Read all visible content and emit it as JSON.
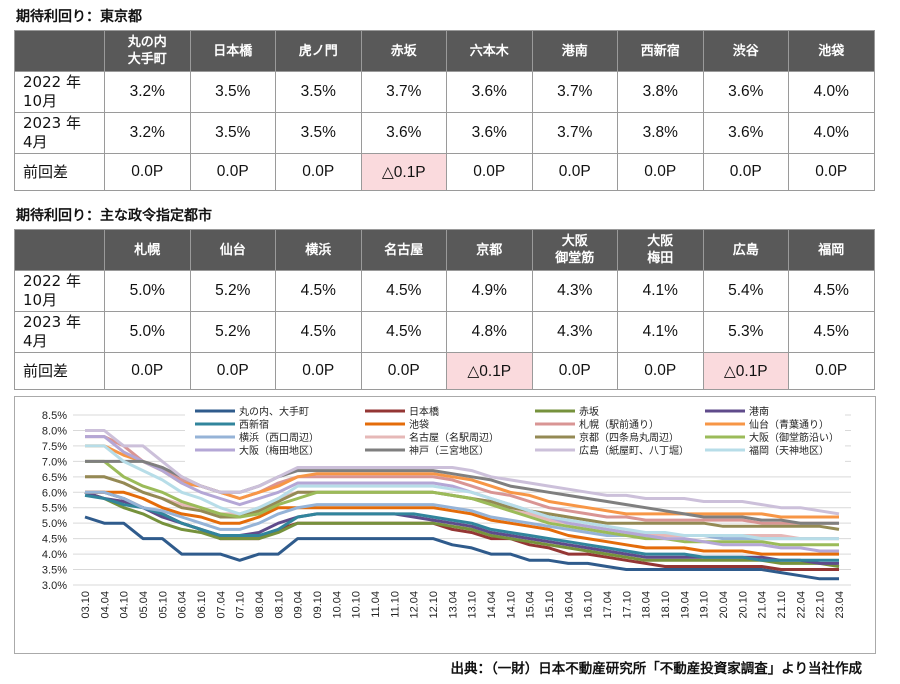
{
  "tokyo": {
    "title": "期待利回り：東京都",
    "columns": [
      "丸の内\n大手町",
      "日本橋",
      "虎ノ門",
      "赤坂",
      "六本木",
      "港南",
      "西新宿",
      "渋谷",
      "池袋"
    ],
    "rows": [
      {
        "label": "2022 年\n10月",
        "values": [
          "3.2%",
          "3.5%",
          "3.5%",
          "3.7%",
          "3.6%",
          "3.7%",
          "3.8%",
          "3.6%",
          "4.0%"
        ]
      },
      {
        "label": "2023 年\n4月",
        "values": [
          "3.2%",
          "3.5%",
          "3.5%",
          "3.6%",
          "3.6%",
          "3.7%",
          "3.8%",
          "3.6%",
          "4.0%"
        ]
      },
      {
        "label": "前回差",
        "values": [
          "0.0P",
          "0.0P",
          "0.0P",
          "△0.1P",
          "0.0P",
          "0.0P",
          "0.0P",
          "0.0P",
          "0.0P"
        ],
        "highlight": [
          false,
          false,
          false,
          true,
          false,
          false,
          false,
          false,
          false
        ]
      }
    ]
  },
  "cities": {
    "title": "期待利回り：主な政令指定都市",
    "columns": [
      "札幌",
      "仙台",
      "横浜",
      "名古屋",
      "京都",
      "大阪\n御堂筋",
      "大阪\n梅田",
      "広島",
      "福岡"
    ],
    "rows": [
      {
        "label": "2022 年\n10月",
        "values": [
          "5.0%",
          "5.2%",
          "4.5%",
          "4.5%",
          "4.9%",
          "4.3%",
          "4.1%",
          "5.4%",
          "4.5%"
        ]
      },
      {
        "label": "2023 年\n4月",
        "values": [
          "5.0%",
          "5.2%",
          "4.5%",
          "4.5%",
          "4.8%",
          "4.3%",
          "4.1%",
          "5.3%",
          "4.5%"
        ]
      },
      {
        "label": "前回差",
        "values": [
          "0.0P",
          "0.0P",
          "0.0P",
          "0.0P",
          "△0.1P",
          "0.0P",
          "0.0P",
          "△0.1P",
          "0.0P"
        ],
        "highlight": [
          false,
          false,
          false,
          false,
          true,
          false,
          false,
          true,
          false
        ]
      }
    ]
  },
  "chart_data": {
    "type": "line",
    "x": [
      "03.10",
      "04.04",
      "04.10",
      "05.04",
      "05.10",
      "06.04",
      "06.10",
      "07.04",
      "07.10",
      "08.04",
      "08.10",
      "09.04",
      "09.10",
      "10.04",
      "10.10",
      "11.04",
      "11.10",
      "12.04",
      "12.10",
      "13.04",
      "13.10",
      "14.04",
      "14.10",
      "15.04",
      "15.10",
      "16.04",
      "16.10",
      "17.04",
      "17.10",
      "18.04",
      "18.10",
      "19.04",
      "19.10",
      "20.04",
      "20.10",
      "21.04",
      "21.10",
      "22.04",
      "22.10",
      "23.04"
    ],
    "y_ticks": [
      "3.0%",
      "3.5%",
      "4.0%",
      "4.5%",
      "5.0%",
      "5.5%",
      "6.0%",
      "6.5%",
      "7.0%",
      "7.5%",
      "8.0%",
      "8.5%"
    ],
    "ylim": [
      3.0,
      8.5
    ],
    "grid": true,
    "legend_position": "top",
    "series": [
      {
        "name": "丸の内、大手町",
        "color": "#2f5b8c",
        "values": [
          5.2,
          5.0,
          5.0,
          4.5,
          4.5,
          4.0,
          4.0,
          4.0,
          3.8,
          4.0,
          4.0,
          4.5,
          4.5,
          4.5,
          4.5,
          4.5,
          4.5,
          4.5,
          4.5,
          4.3,
          4.2,
          4.0,
          4.0,
          3.8,
          3.8,
          3.7,
          3.7,
          3.6,
          3.5,
          3.5,
          3.5,
          3.5,
          3.5,
          3.5,
          3.5,
          3.5,
          3.4,
          3.3,
          3.2,
          3.2
        ]
      },
      {
        "name": "日本橋",
        "color": "#943634",
        "values": [
          6.0,
          6.0,
          5.8,
          5.5,
          5.3,
          5.0,
          4.8,
          4.5,
          4.5,
          4.5,
          4.8,
          5.0,
          5.0,
          5.0,
          5.0,
          5.0,
          5.0,
          5.0,
          5.0,
          4.8,
          4.7,
          4.5,
          4.5,
          4.3,
          4.2,
          4.0,
          4.0,
          3.9,
          3.8,
          3.7,
          3.6,
          3.6,
          3.6,
          3.6,
          3.6,
          3.6,
          3.5,
          3.5,
          3.5,
          3.5
        ]
      },
      {
        "name": "赤坂",
        "color": "#76923c",
        "values": [
          6.0,
          5.8,
          5.5,
          5.3,
          5.0,
          4.8,
          4.7,
          4.5,
          4.5,
          4.5,
          4.7,
          5.0,
          5.0,
          5.0,
          5.0,
          5.0,
          5.0,
          5.0,
          5.0,
          4.9,
          4.8,
          4.6,
          4.5,
          4.4,
          4.3,
          4.2,
          4.1,
          4.0,
          3.9,
          3.8,
          3.8,
          3.8,
          3.8,
          3.8,
          3.8,
          3.8,
          3.7,
          3.7,
          3.7,
          3.6
        ]
      },
      {
        "name": "港南",
        "color": "#5f4b8b",
        "values": [
          6.0,
          5.8,
          5.7,
          5.5,
          5.2,
          5.0,
          4.8,
          4.6,
          4.6,
          4.7,
          5.0,
          5.2,
          5.3,
          5.3,
          5.3,
          5.3,
          5.3,
          5.2,
          5.1,
          5.0,
          4.9,
          4.7,
          4.6,
          4.5,
          4.4,
          4.3,
          4.2,
          4.1,
          4.0,
          3.9,
          3.9,
          3.9,
          3.9,
          3.9,
          3.9,
          3.9,
          3.8,
          3.8,
          3.7,
          3.7
        ]
      },
      {
        "name": "西新宿",
        "color": "#31859c",
        "values": [
          5.9,
          5.8,
          5.6,
          5.5,
          5.3,
          5.0,
          4.8,
          4.6,
          4.6,
          4.6,
          4.8,
          5.2,
          5.3,
          5.3,
          5.3,
          5.3,
          5.3,
          5.3,
          5.2,
          5.1,
          5.0,
          4.8,
          4.7,
          4.6,
          4.5,
          4.4,
          4.3,
          4.2,
          4.1,
          4.0,
          4.0,
          4.0,
          3.9,
          3.9,
          3.9,
          3.8,
          3.8,
          3.8,
          3.8,
          3.8
        ]
      },
      {
        "name": "池袋",
        "color": "#e46c0a",
        "values": [
          6.0,
          6.0,
          6.0,
          5.8,
          5.5,
          5.3,
          5.2,
          5.0,
          5.0,
          5.2,
          5.5,
          5.5,
          5.5,
          5.5,
          5.5,
          5.5,
          5.5,
          5.5,
          5.5,
          5.4,
          5.3,
          5.1,
          5.0,
          4.9,
          4.8,
          4.6,
          4.5,
          4.4,
          4.3,
          4.2,
          4.2,
          4.2,
          4.1,
          4.1,
          4.1,
          4.0,
          4.0,
          4.0,
          4.0,
          4.0
        ]
      },
      {
        "name": "札幌（駅前通り）",
        "color": "#d99594",
        "values": [
          7.8,
          7.8,
          7.5,
          7.0,
          6.8,
          6.4,
          6.2,
          6.0,
          5.8,
          6.0,
          6.3,
          6.5,
          6.5,
          6.5,
          6.5,
          6.5,
          6.5,
          6.5,
          6.5,
          6.4,
          6.2,
          6.0,
          5.9,
          5.7,
          5.5,
          5.4,
          5.3,
          5.2,
          5.2,
          5.1,
          5.1,
          5.1,
          5.1,
          5.1,
          5.1,
          5.0,
          5.0,
          5.0,
          5.0,
          5.0
        ]
      },
      {
        "name": "仙台（青葉通り）",
        "color": "#f79646",
        "values": [
          7.5,
          7.5,
          7.2,
          7.0,
          6.7,
          6.3,
          6.2,
          6.0,
          5.8,
          6.0,
          6.2,
          6.5,
          6.6,
          6.6,
          6.6,
          6.6,
          6.6,
          6.6,
          6.6,
          6.5,
          6.4,
          6.2,
          6.0,
          5.9,
          5.7,
          5.6,
          5.5,
          5.4,
          5.3,
          5.3,
          5.3,
          5.3,
          5.3,
          5.3,
          5.3,
          5.3,
          5.2,
          5.2,
          5.2,
          5.2
        ]
      },
      {
        "name": "横浜（西口周辺）",
        "color": "#95b3d7",
        "values": [
          6.0,
          6.0,
          5.8,
          5.5,
          5.4,
          5.2,
          5.0,
          4.8,
          4.8,
          5.0,
          5.3,
          5.5,
          5.6,
          5.6,
          5.6,
          5.6,
          5.6,
          5.6,
          5.6,
          5.5,
          5.4,
          5.2,
          5.1,
          5.0,
          4.9,
          4.8,
          4.7,
          4.6,
          4.6,
          4.6,
          4.6,
          4.6,
          4.6,
          4.5,
          4.5,
          4.5,
          4.5,
          4.5,
          4.5,
          4.5
        ]
      },
      {
        "name": "名古屋（名駅周辺）",
        "color": "#e6b8b7",
        "values": [
          6.5,
          6.5,
          6.3,
          6.0,
          5.8,
          5.6,
          5.5,
          5.3,
          5.3,
          5.5,
          5.8,
          6.0,
          6.0,
          6.0,
          6.0,
          6.0,
          6.0,
          6.0,
          6.0,
          5.9,
          5.8,
          5.6,
          5.4,
          5.3,
          5.1,
          5.0,
          4.9,
          4.8,
          4.7,
          4.7,
          4.6,
          4.6,
          4.6,
          4.6,
          4.6,
          4.6,
          4.6,
          4.5,
          4.5,
          4.5
        ]
      },
      {
        "name": "京都（四条烏丸周辺）",
        "color": "#948a54",
        "values": [
          6.5,
          6.5,
          6.3,
          6.0,
          5.8,
          5.5,
          5.4,
          5.2,
          5.2,
          5.4,
          5.7,
          6.0,
          6.0,
          6.0,
          6.0,
          6.0,
          6.0,
          6.0,
          6.0,
          5.9,
          5.8,
          5.7,
          5.5,
          5.4,
          5.3,
          5.2,
          5.1,
          5.0,
          5.0,
          5.0,
          5.0,
          5.0,
          5.0,
          4.9,
          4.9,
          4.9,
          4.9,
          4.9,
          4.9,
          4.8
        ]
      },
      {
        "name": "大阪（御堂筋沿い）",
        "color": "#9bbb59",
        "values": [
          7.0,
          7.0,
          6.5,
          6.2,
          6.0,
          5.7,
          5.5,
          5.3,
          5.2,
          5.3,
          5.6,
          5.8,
          6.0,
          6.0,
          6.0,
          6.0,
          6.0,
          6.0,
          6.0,
          5.9,
          5.8,
          5.6,
          5.4,
          5.2,
          5.0,
          4.9,
          4.8,
          4.7,
          4.6,
          4.5,
          4.5,
          4.4,
          4.4,
          4.4,
          4.4,
          4.4,
          4.3,
          4.3,
          4.3,
          4.3
        ]
      },
      {
        "name": "大阪（梅田地区）",
        "color": "#b4a7d6",
        "values": [
          7.8,
          7.8,
          7.3,
          7.0,
          6.7,
          6.3,
          6.0,
          5.8,
          5.6,
          5.8,
          6.0,
          6.3,
          6.3,
          6.3,
          6.3,
          6.3,
          6.3,
          6.3,
          6.3,
          6.2,
          6.0,
          5.8,
          5.6,
          5.4,
          5.2,
          5.0,
          4.9,
          4.8,
          4.7,
          4.6,
          4.5,
          4.5,
          4.4,
          4.3,
          4.3,
          4.3,
          4.2,
          4.2,
          4.1,
          4.1
        ]
      },
      {
        "name": "神戸（三宮地区）",
        "color": "#7f7f7f",
        "values": [
          7.0,
          7.0,
          7.0,
          7.0,
          6.8,
          6.5,
          6.2,
          6.0,
          6.0,
          6.2,
          6.5,
          6.7,
          6.7,
          6.7,
          6.7,
          6.7,
          6.7,
          6.7,
          6.7,
          6.6,
          6.5,
          6.4,
          6.2,
          6.1,
          6.0,
          5.9,
          5.8,
          5.7,
          5.6,
          5.5,
          5.4,
          5.3,
          5.2,
          5.2,
          5.2,
          5.1,
          5.1,
          5.0,
          5.0,
          5.0
        ]
      },
      {
        "name": "広島（紙屋町、八丁堀）",
        "color": "#ccc0da",
        "values": [
          8.0,
          8.0,
          7.5,
          7.5,
          7.0,
          6.5,
          6.2,
          6.0,
          6.0,
          6.2,
          6.5,
          6.8,
          6.8,
          6.8,
          6.8,
          6.8,
          6.8,
          6.8,
          6.8,
          6.8,
          6.7,
          6.5,
          6.4,
          6.3,
          6.2,
          6.1,
          6.0,
          5.9,
          5.9,
          5.8,
          5.8,
          5.8,
          5.7,
          5.7,
          5.7,
          5.6,
          5.5,
          5.5,
          5.4,
          5.3
        ]
      },
      {
        "name": "福岡（天神地区）",
        "color": "#b7dde8",
        "values": [
          7.5,
          7.5,
          7.0,
          6.7,
          6.4,
          6.0,
          5.8,
          5.5,
          5.3,
          5.5,
          5.8,
          6.2,
          6.2,
          6.2,
          6.2,
          6.2,
          6.2,
          6.2,
          6.2,
          6.1,
          6.0,
          5.8,
          5.6,
          5.4,
          5.2,
          5.1,
          5.0,
          4.9,
          4.8,
          4.7,
          4.7,
          4.6,
          4.6,
          4.6,
          4.6,
          4.5,
          4.5,
          4.5,
          4.5,
          4.5
        ]
      }
    ]
  },
  "source_note": "出典：（一財）日本不動産研究所「不動産投資家調査」より当社作成"
}
